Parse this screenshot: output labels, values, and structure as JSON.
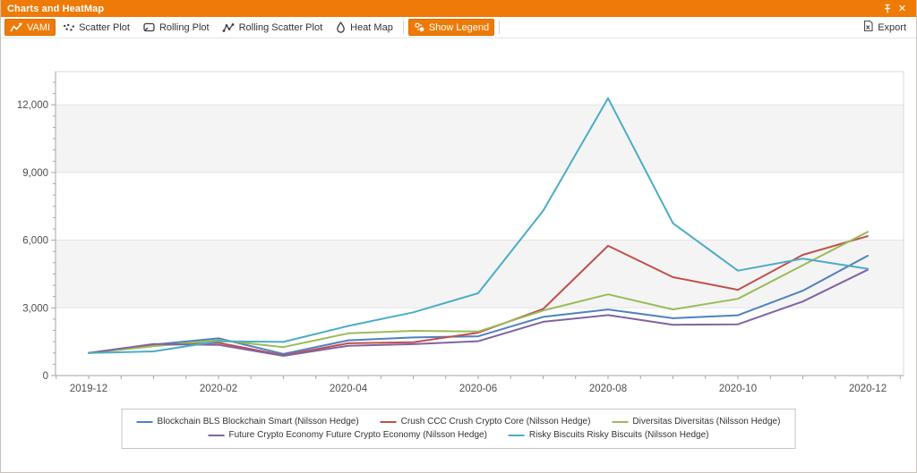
{
  "window": {
    "title": "Charts and HeatMap",
    "pin_icon": "pin-icon",
    "close_icon": "close-icon",
    "close_glyph": "✕"
  },
  "toolbar": {
    "tabs": [
      {
        "label": "VAMI",
        "icon": "line-chart-icon",
        "active": true
      },
      {
        "label": "Scatter Plot",
        "icon": "scatter-plot-icon",
        "active": false
      },
      {
        "label": "Rolling Plot",
        "icon": "rolling-plot-icon",
        "active": false
      },
      {
        "label": "Rolling Scatter Plot",
        "icon": "rolling-scatter-plot-icon",
        "active": false
      },
      {
        "label": "Heat Map",
        "icon": "heat-map-icon",
        "active": false
      }
    ],
    "show_legend": {
      "label": "Show Legend",
      "icon": "legend-icon",
      "active": true
    },
    "export": {
      "label": "Export",
      "icon": "export-excel-icon"
    }
  },
  "colors": {
    "accent": "#EE7B08",
    "plot_band": "#f4f4f4",
    "gridline": "#e3e3e3",
    "axis": "#a6a6a6",
    "plot_border": "#d9d9d9",
    "axis_text": "#4d4d4d"
  },
  "chart_data": {
    "type": "line",
    "title": "",
    "xlabel": "",
    "ylabel": "",
    "x": [
      "2019-12",
      "2020-01",
      "2020-02",
      "2020-03",
      "2020-04",
      "2020-05",
      "2020-06",
      "2020-07",
      "2020-08",
      "2020-09",
      "2020-10",
      "2020-11",
      "2020-12"
    ],
    "x_labeled_ticks": [
      "2019-12",
      "2020-02",
      "2020-04",
      "2020-06",
      "2020-08",
      "2020-10",
      "2020-12"
    ],
    "yticks": [
      0,
      3000,
      6000,
      9000,
      12000
    ],
    "ytick_labels": [
      "0",
      "3,000",
      "6,000",
      "9,000",
      "12,000"
    ],
    "ylim": [
      0,
      13450
    ],
    "grid": true,
    "band_step": 3000,
    "legend_position": "bottom",
    "series": [
      {
        "name": "Blockchain BLS Blockchain Smart (Nilsson Hedge)",
        "color": "#4F81BD",
        "values": [
          1000,
          1370,
          1650,
          960,
          1560,
          1690,
          1740,
          2600,
          2930,
          2540,
          2670,
          3760,
          5310
        ]
      },
      {
        "name": "Crush CCC Crush Crypto Core (Nilsson Hedge)",
        "color": "#C0504D",
        "values": [
          1000,
          1330,
          1450,
          900,
          1430,
          1480,
          1900,
          2950,
          5750,
          4360,
          3800,
          5350,
          6180
        ]
      },
      {
        "name": "Diversitas Diversitas (Nilsson Hedge)",
        "color": "#9BBB59",
        "values": [
          1000,
          1300,
          1570,
          1260,
          1870,
          1980,
          1950,
          2880,
          3600,
          2930,
          3400,
          4890,
          6370
        ]
      },
      {
        "name": "Future Crypto Economy Future Crypto Economy (Nilsson Hedge)",
        "color": "#8064A2",
        "values": [
          1000,
          1400,
          1360,
          870,
          1320,
          1390,
          1520,
          2380,
          2680,
          2250,
          2270,
          3280,
          4690
        ]
      },
      {
        "name": "Risky Biscuits Risky Biscuits (Nilsson Hedge)",
        "color": "#4BACC6",
        "values": [
          1000,
          1070,
          1520,
          1490,
          2200,
          2800,
          3650,
          7300,
          12290,
          6750,
          4650,
          5180,
          4730
        ]
      }
    ]
  }
}
